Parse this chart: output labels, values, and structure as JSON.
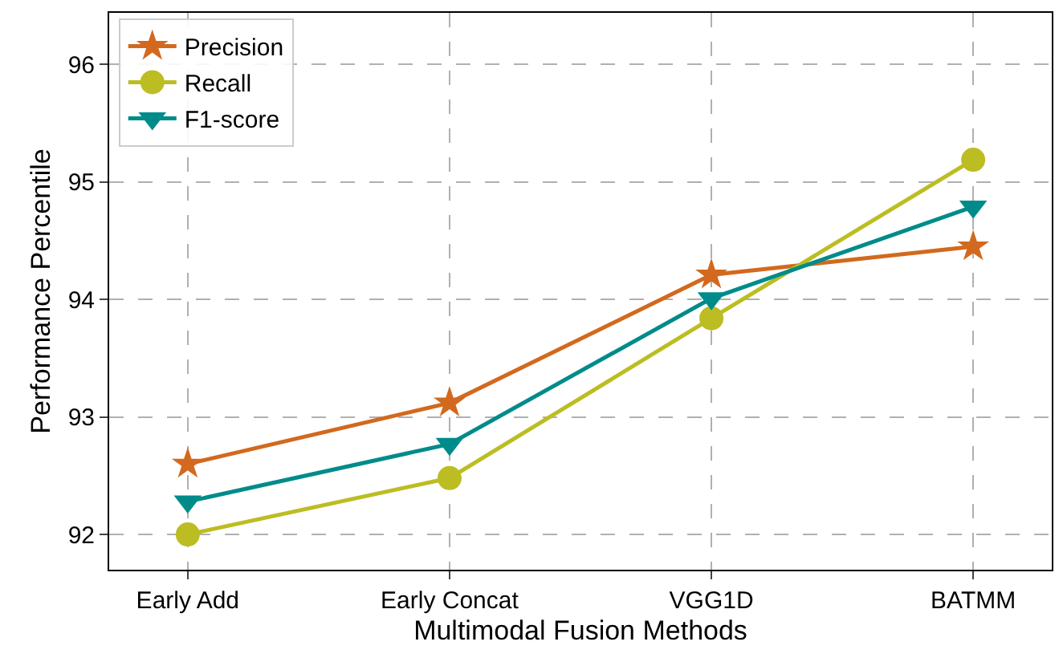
{
  "chart_data": {
    "type": "line",
    "xlabel": "Multimodal Fusion Methods",
    "ylabel": "Performance Percentile",
    "categories": [
      "Early Add",
      "Early Concat",
      "VGG1D",
      "BATMM"
    ],
    "series": [
      {
        "name": "Precision",
        "color": "#d2691e",
        "values": [
          92.6,
          93.12,
          94.21,
          94.45
        ],
        "marker": "star"
      },
      {
        "name": "Recall",
        "color": "#bcbd22",
        "values": [
          92.0,
          92.48,
          93.84,
          95.19
        ],
        "marker": "circle"
      },
      {
        "name": "F1-score",
        "color": "#008b8b",
        "values": [
          92.28,
          92.77,
          94.01,
          94.79
        ],
        "marker": "triangle-down"
      }
    ],
    "ylim": [
      91.7,
      96.44
    ],
    "yticks": [
      92,
      93,
      94,
      95,
      96
    ],
    "grid": true,
    "legend": "top left",
    "line_style": "solid"
  }
}
